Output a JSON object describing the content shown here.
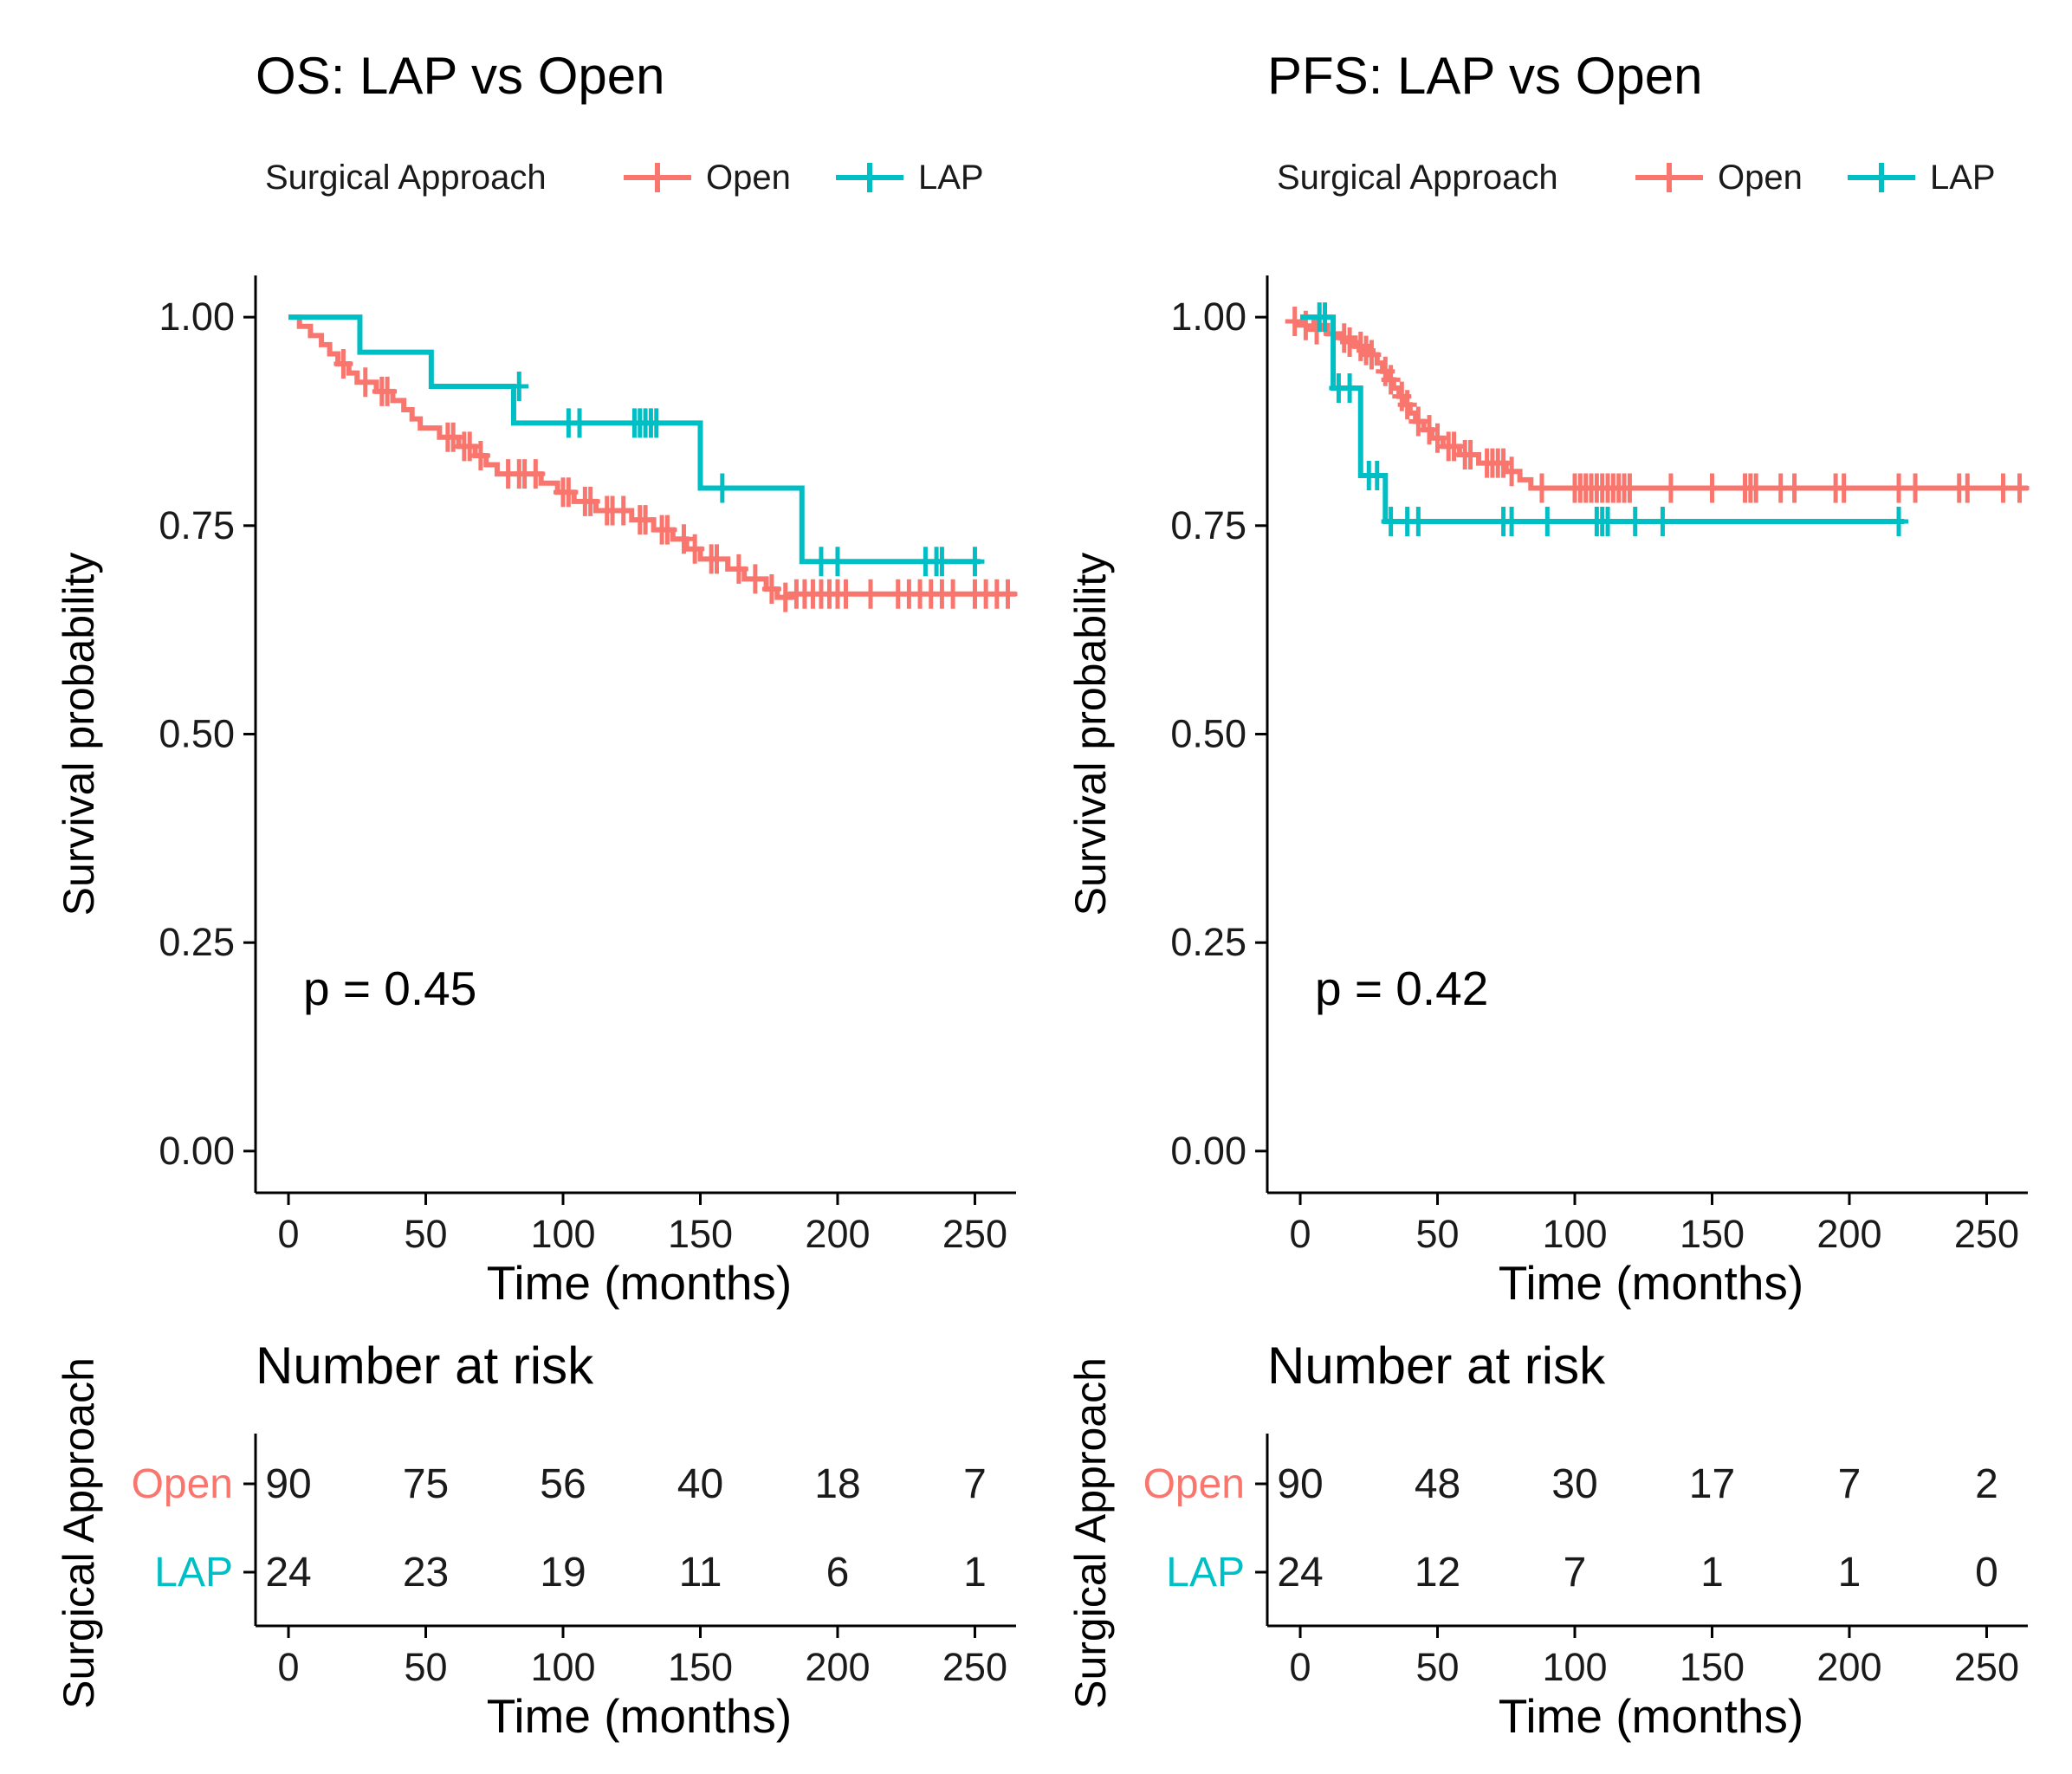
{
  "colors": {
    "open": "#F8766D",
    "lap": "#00BFC4",
    "axis": "#000000",
    "text": "#1a1a1a"
  },
  "chart_data": [
    {
      "type": "line",
      "subtype": "kaplan-meier",
      "title": "OS: LAP vs Open",
      "xlabel": "Time (months)",
      "ylabel": "Survival probability",
      "xlim": [
        -12,
        265
      ],
      "ylim": [
        -0.05,
        1.05
      ],
      "xticks": [
        0,
        50,
        100,
        150,
        200,
        250
      ],
      "yticks": [
        0,
        0.25,
        0.5,
        0.75,
        1
      ],
      "ytick_labels": [
        "0.00",
        "0.25",
        "0.50",
        "0.75",
        "1.00"
      ],
      "grid": false,
      "legend": {
        "title": "Surgical Approach",
        "position": "top",
        "labels": [
          "Open",
          "LAP"
        ]
      },
      "annotation": "p = 0.45",
      "series": [
        {
          "name": "Open",
          "color_key": "open",
          "steps": [
            [
              0,
              1.0
            ],
            [
              4,
              0.989
            ],
            [
              8,
              0.978
            ],
            [
              12,
              0.967
            ],
            [
              15,
              0.956
            ],
            [
              18,
              0.944
            ],
            [
              22,
              0.933
            ],
            [
              25,
              0.922
            ],
            [
              32,
              0.911
            ],
            [
              38,
              0.9
            ],
            [
              42,
              0.889
            ],
            [
              45,
              0.878
            ],
            [
              48,
              0.867
            ],
            [
              55,
              0.856
            ],
            [
              62,
              0.845
            ],
            [
              68,
              0.834
            ],
            [
              72,
              0.823
            ],
            [
              76,
              0.812
            ],
            [
              92,
              0.801
            ],
            [
              98,
              0.79
            ],
            [
              104,
              0.779
            ],
            [
              112,
              0.768
            ],
            [
              125,
              0.757
            ],
            [
              133,
              0.745
            ],
            [
              140,
              0.734
            ],
            [
              145,
              0.722
            ],
            [
              150,
              0.71
            ],
            [
              160,
              0.698
            ],
            [
              166,
              0.686
            ],
            [
              174,
              0.674
            ],
            [
              178,
              0.664
            ],
            [
              183,
              0.668
            ]
          ],
          "end_x": 265,
          "censor": [
            [
              20,
              0.944
            ],
            [
              28,
              0.922
            ],
            [
              34,
              0.911
            ],
            [
              36,
              0.911
            ],
            [
              58,
              0.856
            ],
            [
              60,
              0.856
            ],
            [
              64,
              0.845
            ],
            [
              66,
              0.845
            ],
            [
              70,
              0.834
            ],
            [
              80,
              0.812
            ],
            [
              84,
              0.812
            ],
            [
              86,
              0.812
            ],
            [
              90,
              0.812
            ],
            [
              100,
              0.79
            ],
            [
              102,
              0.79
            ],
            [
              108,
              0.779
            ],
            [
              110,
              0.779
            ],
            [
              116,
              0.768
            ],
            [
              118,
              0.768
            ],
            [
              122,
              0.768
            ],
            [
              128,
              0.757
            ],
            [
              130,
              0.757
            ],
            [
              136,
              0.745
            ],
            [
              138,
              0.745
            ],
            [
              144,
              0.734
            ],
            [
              148,
              0.722
            ],
            [
              154,
              0.71
            ],
            [
              156,
              0.71
            ],
            [
              164,
              0.698
            ],
            [
              170,
              0.686
            ],
            [
              176,
              0.674
            ],
            [
              181,
              0.664
            ],
            [
              185,
              0.668
            ],
            [
              188,
              0.668
            ],
            [
              191,
              0.668
            ],
            [
              194,
              0.668
            ],
            [
              197,
              0.668
            ],
            [
              200,
              0.668
            ],
            [
              203,
              0.668
            ],
            [
              212,
              0.668
            ],
            [
              222,
              0.668
            ],
            [
              226,
              0.668
            ],
            [
              230,
              0.668
            ],
            [
              234,
              0.668
            ],
            [
              238,
              0.668
            ],
            [
              242,
              0.668
            ],
            [
              250,
              0.668
            ],
            [
              254,
              0.668
            ],
            [
              258,
              0.668
            ],
            [
              262,
              0.668
            ]
          ]
        },
        {
          "name": "LAP",
          "color_key": "lap",
          "steps": [
            [
              0,
              1.0
            ],
            [
              26,
              0.958
            ],
            [
              52,
              0.917
            ],
            [
              82,
              0.873
            ],
            [
              150,
              0.795
            ],
            [
              187,
              0.707
            ]
          ],
          "end_x": 252,
          "censor": [
            [
              84,
              0.917
            ],
            [
              102,
              0.873
            ],
            [
              106,
              0.873
            ],
            [
              126,
              0.873
            ],
            [
              128,
              0.873
            ],
            [
              130,
              0.873
            ],
            [
              132,
              0.873
            ],
            [
              134,
              0.873
            ],
            [
              158,
              0.795
            ],
            [
              194,
              0.707
            ],
            [
              200,
              0.707
            ],
            [
              232,
              0.707
            ],
            [
              236,
              0.707
            ],
            [
              238,
              0.707
            ],
            [
              250,
              0.707
            ]
          ]
        }
      ],
      "risk_table": {
        "title": "Number at risk",
        "ylabel": "Surgical Approach",
        "xlabel": "Time (months)",
        "times": [
          0,
          50,
          100,
          150,
          200,
          250
        ],
        "rows": [
          {
            "label": "Open",
            "color_key": "open",
            "values": [
              90,
              75,
              56,
              40,
              18,
              7
            ]
          },
          {
            "label": "LAP",
            "color_key": "lap",
            "values": [
              24,
              23,
              19,
              11,
              6,
              1
            ]
          }
        ]
      }
    },
    {
      "type": "line",
      "subtype": "kaplan-meier",
      "title": "PFS: LAP vs Open",
      "xlabel": "Time (months)",
      "ylabel": "Survival probability",
      "xlim": [
        -12,
        265
      ],
      "ylim": [
        -0.05,
        1.05
      ],
      "xticks": [
        0,
        50,
        100,
        150,
        200,
        250
      ],
      "yticks": [
        0,
        0.25,
        0.5,
        0.75,
        1
      ],
      "ytick_labels": [
        "0.00",
        "0.25",
        "0.50",
        "0.75",
        "1.00"
      ],
      "grid": false,
      "legend": {
        "title": "Surgical Approach",
        "position": "top",
        "labels": [
          "Open",
          "LAP"
        ]
      },
      "annotation": "p = 0.42",
      "series": [
        {
          "name": "Open",
          "color_key": "open",
          "steps": [
            [
              0,
              1.0
            ],
            [
              5,
              0.99
            ],
            [
              10,
              0.98
            ],
            [
              15,
              0.975
            ],
            [
              20,
              0.965
            ],
            [
              25,
              0.955
            ],
            [
              28,
              0.945
            ],
            [
              30,
              0.935
            ],
            [
              32,
              0.925
            ],
            [
              34,
              0.915
            ],
            [
              36,
              0.905
            ],
            [
              38,
              0.895
            ],
            [
              40,
              0.885
            ],
            [
              42,
              0.875
            ],
            [
              45,
              0.865
            ],
            [
              48,
              0.855
            ],
            [
              52,
              0.845
            ],
            [
              58,
              0.835
            ],
            [
              65,
              0.825
            ],
            [
              75,
              0.815
            ],
            [
              80,
              0.805
            ],
            [
              84,
              0.795
            ]
          ],
          "end_x": 265,
          "censor": [
            [
              -2,
              0.995
            ],
            [
              2,
              0.99
            ],
            [
              6,
              0.985
            ],
            [
              12,
              0.98
            ],
            [
              16,
              0.975
            ],
            [
              18,
              0.97
            ],
            [
              22,
              0.965
            ],
            [
              24,
              0.96
            ],
            [
              26,
              0.955
            ],
            [
              31,
              0.935
            ],
            [
              33,
              0.925
            ],
            [
              37,
              0.905
            ],
            [
              39,
              0.895
            ],
            [
              43,
              0.875
            ],
            [
              47,
              0.865
            ],
            [
              50,
              0.855
            ],
            [
              54,
              0.845
            ],
            [
              56,
              0.845
            ],
            [
              60,
              0.835
            ],
            [
              62,
              0.835
            ],
            [
              68,
              0.825
            ],
            [
              70,
              0.825
            ],
            [
              72,
              0.825
            ],
            [
              74,
              0.825
            ],
            [
              77,
              0.815
            ],
            [
              88,
              0.795
            ],
            [
              100,
              0.795
            ],
            [
              102,
              0.795
            ],
            [
              104,
              0.795
            ],
            [
              106,
              0.795
            ],
            [
              108,
              0.795
            ],
            [
              110,
              0.795
            ],
            [
              112,
              0.795
            ],
            [
              114,
              0.795
            ],
            [
              116,
              0.795
            ],
            [
              118,
              0.795
            ],
            [
              120,
              0.795
            ],
            [
              135,
              0.795
            ],
            [
              150,
              0.795
            ],
            [
              162,
              0.795
            ],
            [
              164,
              0.795
            ],
            [
              166,
              0.795
            ],
            [
              175,
              0.795
            ],
            [
              180,
              0.795
            ],
            [
              195,
              0.795
            ],
            [
              198,
              0.795
            ],
            [
              218,
              0.795
            ],
            [
              224,
              0.795
            ],
            [
              240,
              0.795
            ],
            [
              243,
              0.795
            ],
            [
              256,
              0.795
            ],
            [
              262,
              0.795
            ]
          ]
        },
        {
          "name": "LAP",
          "color_key": "lap",
          "steps": [
            [
              0,
              1.0
            ],
            [
              12,
              0.915
            ],
            [
              22,
              0.81
            ],
            [
              31,
              0.755
            ]
          ],
          "end_x": 220,
          "censor": [
            [
              7,
              1.0
            ],
            [
              9,
              1.0
            ],
            [
              14,
              0.915
            ],
            [
              18,
              0.915
            ],
            [
              25,
              0.81
            ],
            [
              28,
              0.81
            ],
            [
              33,
              0.755
            ],
            [
              39,
              0.755
            ],
            [
              43,
              0.755
            ],
            [
              74,
              0.755
            ],
            [
              77,
              0.755
            ],
            [
              90,
              0.755
            ],
            [
              108,
              0.755
            ],
            [
              110,
              0.755
            ],
            [
              112,
              0.755
            ],
            [
              122,
              0.755
            ],
            [
              132,
              0.755
            ],
            [
              218,
              0.755
            ]
          ]
        }
      ],
      "risk_table": {
        "title": "Number at risk",
        "ylabel": "Surgical Approach",
        "xlabel": "Time (months)",
        "times": [
          0,
          50,
          100,
          150,
          200,
          250
        ],
        "rows": [
          {
            "label": "Open",
            "color_key": "open",
            "values": [
              90,
              48,
              30,
              17,
              7,
              2
            ]
          },
          {
            "label": "LAP",
            "color_key": "lap",
            "values": [
              24,
              12,
              7,
              1,
              1,
              0
            ]
          }
        ]
      }
    }
  ]
}
